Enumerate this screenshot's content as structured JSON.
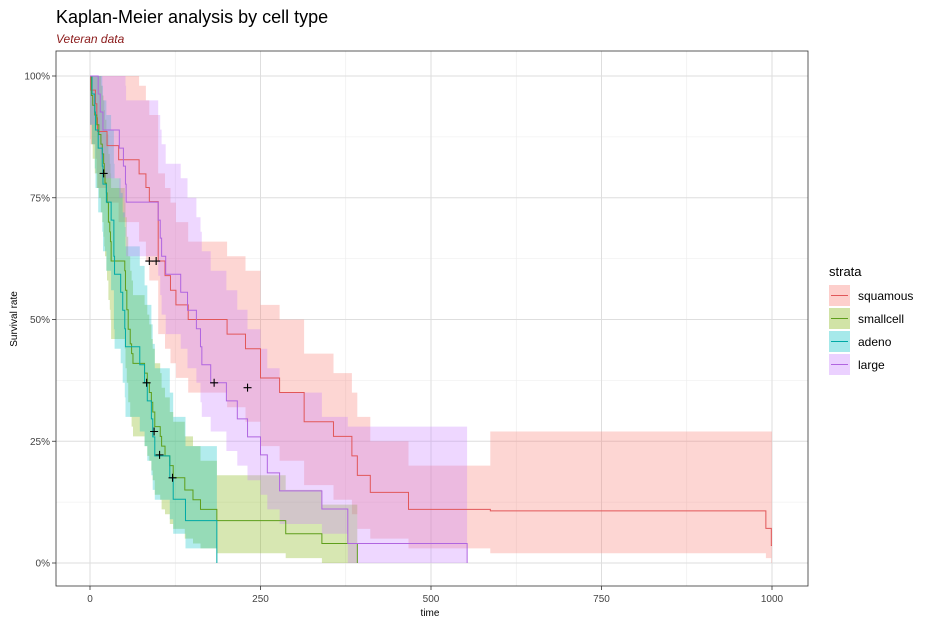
{
  "chart_data": {
    "type": "line",
    "subtype": "kaplan-meier step curves with confidence bands",
    "title": "Kaplan-Meier analysis by cell type",
    "subtitle": "Veteran data",
    "xlabel": "time",
    "ylabel": "Survival rate",
    "xlim": [
      -50,
      1050
    ],
    "ylim": [
      0,
      1
    ],
    "x_ticks": [
      0,
      250,
      500,
      750,
      1000
    ],
    "x_tick_labels": [
      "0",
      "250",
      "500",
      "750",
      "1000"
    ],
    "y_ticks": [
      0,
      0.25,
      0.5,
      0.75,
      1.0
    ],
    "y_tick_labels": [
      "0%",
      "25%",
      "50%",
      "75%",
      "100%"
    ],
    "grid": true,
    "legend": {
      "title": "strata",
      "position": "right"
    },
    "series": [
      {
        "name": "squamous",
        "color": "#E15759",
        "fill": "#F8766D",
        "times": [
          0,
          1,
          8,
          10,
          11,
          25,
          42,
          72,
          82,
          87,
          100,
          110,
          118,
          126,
          144,
          201,
          228,
          250,
          278,
          314,
          357,
          384,
          392,
          411,
          467,
          587,
          991,
          999
        ],
        "surv": [
          1.0,
          0.971,
          0.943,
          0.914,
          0.886,
          0.857,
          0.828,
          0.799,
          0.771,
          0.742,
          0.62,
          0.59,
          0.56,
          0.53,
          0.5,
          0.47,
          0.44,
          0.38,
          0.35,
          0.29,
          0.26,
          0.22,
          0.18,
          0.145,
          0.11,
          0.107,
          0.071,
          0.036
        ],
        "lower": [
          0.87,
          0.86,
          0.83,
          0.8,
          0.77,
          0.74,
          0.7,
          0.66,
          0.62,
          0.58,
          0.47,
          0.44,
          0.41,
          0.38,
          0.35,
          0.32,
          0.29,
          0.24,
          0.21,
          0.16,
          0.13,
          0.1,
          0.07,
          0.05,
          0.03,
          0.02,
          0.01,
          0.0
        ],
        "upper": [
          1.0,
          1.0,
          1.0,
          1.0,
          1.0,
          1.0,
          1.0,
          0.98,
          0.95,
          0.92,
          0.8,
          0.77,
          0.74,
          0.7,
          0.66,
          0.63,
          0.6,
          0.53,
          0.5,
          0.43,
          0.39,
          0.35,
          0.3,
          0.25,
          0.2,
          0.27,
          0.27,
          0.27
        ],
        "end": 1000,
        "censor": [
          [
            87,
            0.62
          ],
          [
            97,
            0.62
          ],
          [
            231,
            0.36
          ]
        ]
      },
      {
        "name": "smallcell",
        "color": "#5E9E1B",
        "fill": "#7CAE00",
        "times": [
          0,
          2,
          4,
          7,
          10,
          13,
          16,
          18,
          20,
          21,
          22,
          24,
          25,
          27,
          29,
          30,
          31,
          51,
          52,
          54,
          56,
          59,
          61,
          63,
          80,
          84,
          87,
          90,
          92,
          95,
          103,
          105,
          110,
          117,
          122,
          139,
          151,
          162,
          186,
          287,
          340,
          392
        ],
        "surv": [
          1.0,
          0.96,
          0.94,
          0.92,
          0.9,
          0.88,
          0.86,
          0.84,
          0.82,
          0.8,
          0.78,
          0.76,
          0.74,
          0.7,
          0.68,
          0.66,
          0.62,
          0.6,
          0.56,
          0.52,
          0.48,
          0.45,
          0.43,
          0.41,
          0.39,
          0.37,
          0.35,
          0.33,
          0.31,
          0.28,
          0.26,
          0.24,
          0.22,
          0.2,
          0.175,
          0.15,
          0.13,
          0.11,
          0.087,
          0.06,
          0.04,
          0.0
        ],
        "lower": [
          0.9,
          0.86,
          0.83,
          0.8,
          0.77,
          0.75,
          0.72,
          0.7,
          0.67,
          0.65,
          0.63,
          0.6,
          0.58,
          0.54,
          0.52,
          0.5,
          0.46,
          0.44,
          0.4,
          0.37,
          0.33,
          0.3,
          0.28,
          0.26,
          0.24,
          0.22,
          0.21,
          0.19,
          0.17,
          0.14,
          0.13,
          0.11,
          0.1,
          0.08,
          0.07,
          0.05,
          0.04,
          0.03,
          0.02,
          0.01,
          0.0,
          0.0
        ],
        "upper": [
          1.0,
          1.0,
          1.0,
          1.0,
          1.0,
          1.0,
          0.98,
          0.96,
          0.95,
          0.93,
          0.91,
          0.89,
          0.88,
          0.84,
          0.82,
          0.8,
          0.77,
          0.74,
          0.71,
          0.67,
          0.63,
          0.6,
          0.58,
          0.55,
          0.53,
          0.51,
          0.49,
          0.46,
          0.44,
          0.41,
          0.39,
          0.36,
          0.34,
          0.31,
          0.29,
          0.26,
          0.24,
          0.21,
          0.18,
          0.15,
          0.12,
          0.0
        ],
        "end": 392,
        "censor": [
          [
            83,
            0.37
          ]
        ]
      },
      {
        "name": "adeno",
        "color": "#00A9A5",
        "fill": "#00BFC4",
        "times": [
          0,
          3,
          7,
          8,
          12,
          18,
          19,
          24,
          31,
          35,
          36,
          45,
          48,
          51,
          52,
          73,
          80,
          84,
          90,
          92,
          95,
          117,
          122,
          140,
          186
        ],
        "surv": [
          1.0,
          0.963,
          0.926,
          0.889,
          0.852,
          0.815,
          0.778,
          0.741,
          0.704,
          0.63,
          0.593,
          0.556,
          0.519,
          0.481,
          0.444,
          0.407,
          0.37,
          0.333,
          0.296,
          0.259,
          0.22,
          0.175,
          0.131,
          0.087,
          0.0
        ],
        "lower": [
          0.9,
          0.86,
          0.81,
          0.77,
          0.72,
          0.68,
          0.64,
          0.6,
          0.56,
          0.48,
          0.44,
          0.41,
          0.37,
          0.34,
          0.3,
          0.27,
          0.24,
          0.21,
          0.18,
          0.15,
          0.13,
          0.09,
          0.06,
          0.03,
          0.0
        ],
        "upper": [
          1.0,
          1.0,
          1.0,
          1.0,
          1.0,
          0.98,
          0.95,
          0.92,
          0.89,
          0.82,
          0.79,
          0.76,
          0.72,
          0.69,
          0.65,
          0.61,
          0.57,
          0.53,
          0.49,
          0.45,
          0.4,
          0.35,
          0.3,
          0.24,
          0.0
        ],
        "end": 186,
        "censor": [
          [
            94,
            0.27
          ],
          [
            102,
            0.222
          ],
          [
            121,
            0.175
          ]
        ]
      },
      {
        "name": "large",
        "color": "#B065E0",
        "fill": "#C77CFF",
        "times": [
          0,
          12,
          15,
          19,
          43,
          49,
          52,
          53,
          100,
          103,
          105,
          111,
          133,
          143,
          156,
          162,
          164,
          177,
          200,
          216,
          231,
          250,
          260,
          278,
          340,
          378,
          553
        ],
        "surv": [
          1.0,
          0.963,
          0.926,
          0.889,
          0.852,
          0.815,
          0.778,
          0.741,
          0.704,
          0.667,
          0.63,
          0.593,
          0.556,
          0.519,
          0.481,
          0.444,
          0.407,
          0.37,
          0.333,
          0.296,
          0.259,
          0.222,
          0.185,
          0.148,
          0.111,
          0.04,
          0.0
        ],
        "lower": [
          0.9,
          0.87,
          0.83,
          0.79,
          0.75,
          0.71,
          0.67,
          0.63,
          0.59,
          0.55,
          0.51,
          0.47,
          0.44,
          0.4,
          0.37,
          0.33,
          0.3,
          0.27,
          0.23,
          0.2,
          0.17,
          0.14,
          0.11,
          0.08,
          0.06,
          0.0,
          0.0
        ],
        "upper": [
          1.0,
          1.0,
          1.0,
          1.0,
          1.0,
          1.0,
          0.98,
          0.95,
          0.92,
          0.89,
          0.86,
          0.82,
          0.79,
          0.75,
          0.71,
          0.68,
          0.64,
          0.6,
          0.56,
          0.52,
          0.48,
          0.44,
          0.4,
          0.35,
          0.3,
          0.28,
          0.0
        ],
        "end": 553,
        "censor": [
          [
            20,
            0.8
          ],
          [
            182,
            0.37
          ]
        ]
      }
    ]
  }
}
